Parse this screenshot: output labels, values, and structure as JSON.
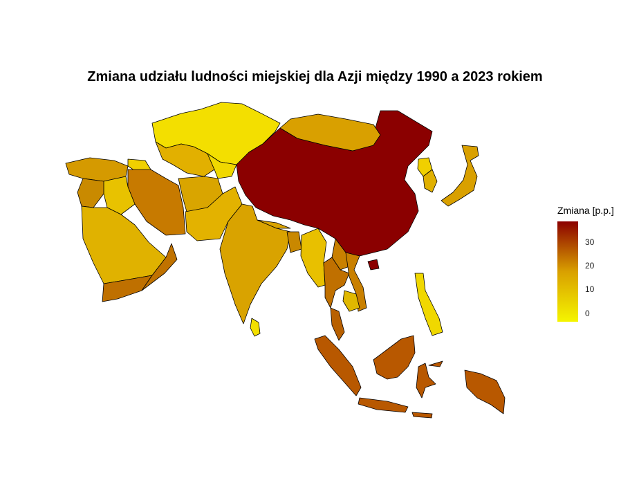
{
  "title": "Zmiana udziału ludności miejskiej dla Azji między 1990 a 2023 rokiem",
  "legend": {
    "title": "Zmiana [p.p.]",
    "ticks": [
      "30",
      "20",
      "10",
      "0"
    ],
    "color_low": "#f5f500",
    "color_mid": "#d9a000",
    "color_high": "#8b0000"
  },
  "chart_data": {
    "type": "choropleth",
    "region": "Asia",
    "variable": "Zmiana [p.p.]",
    "scale_range": [
      -3,
      40
    ]
  }
}
